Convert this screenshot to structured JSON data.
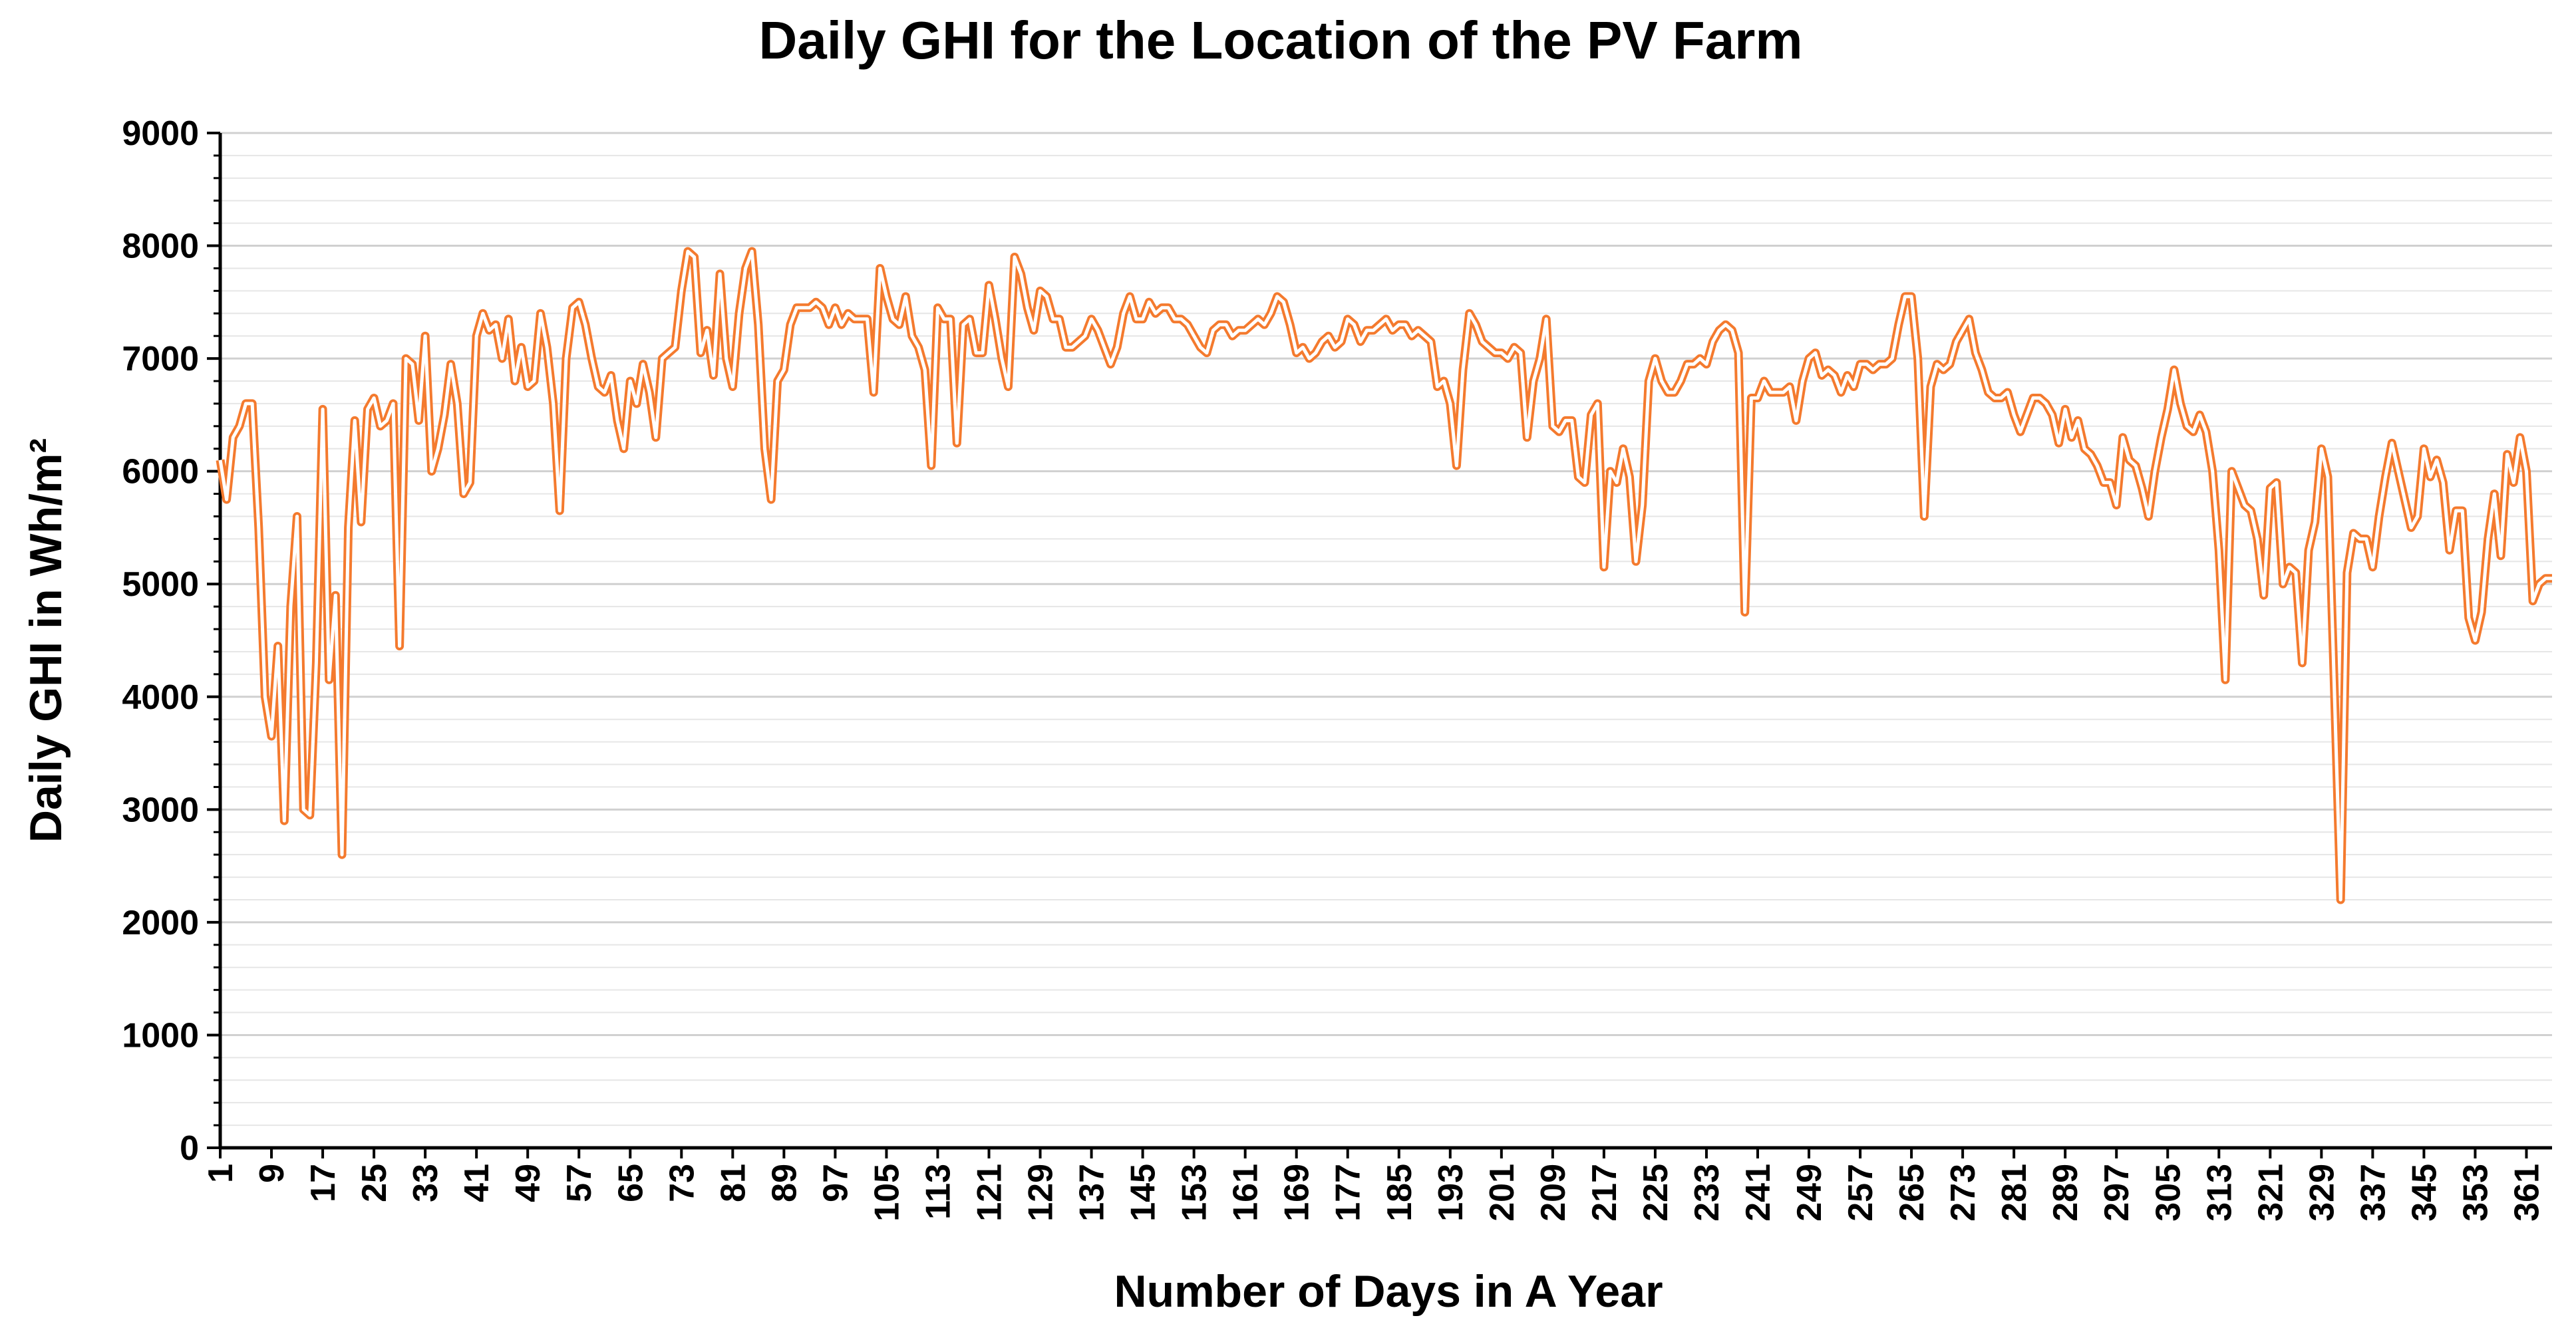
{
  "chart_data": {
    "type": "line",
    "title": "Daily GHI for the Location of the PV Farm",
    "xlabel": "Number of Days in A Year",
    "ylabel": "Daily GHI in Wh/m²",
    "x": [
      1,
      2,
      3,
      4,
      5,
      6,
      7,
      8,
      9,
      10,
      11,
      12,
      13,
      14,
      15,
      16,
      17,
      18,
      19,
      20,
      21,
      22,
      23,
      24,
      25,
      26,
      27,
      28,
      29,
      30,
      31,
      32,
      33,
      34,
      35,
      36,
      37,
      38,
      39,
      40,
      41,
      42,
      43,
      44,
      45,
      46,
      47,
      48,
      49,
      50,
      51,
      52,
      53,
      54,
      55,
      56,
      57,
      58,
      59,
      60,
      61,
      62,
      63,
      64,
      65,
      66,
      67,
      68,
      69,
      70,
      71,
      72,
      73,
      74,
      75,
      76,
      77,
      78,
      79,
      80,
      81,
      82,
      83,
      84,
      85,
      86,
      87,
      88,
      89,
      90,
      91,
      92,
      93,
      94,
      95,
      96,
      97,
      98,
      99,
      100,
      101,
      102,
      103,
      104,
      105,
      106,
      107,
      108,
      109,
      110,
      111,
      112,
      113,
      114,
      115,
      116,
      117,
      118,
      119,
      120,
      121,
      122,
      123,
      124,
      125,
      126,
      127,
      128,
      129,
      130,
      131,
      132,
      133,
      134,
      135,
      136,
      137,
      138,
      139,
      140,
      141,
      142,
      143,
      144,
      145,
      146,
      147,
      148,
      149,
      150,
      151,
      152,
      153,
      154,
      155,
      156,
      157,
      158,
      159,
      160,
      161,
      162,
      163,
      164,
      165,
      166,
      167,
      168,
      169,
      170,
      171,
      172,
      173,
      174,
      175,
      176,
      177,
      178,
      179,
      180,
      181,
      182,
      183,
      184,
      185,
      186,
      187,
      188,
      189,
      190,
      191,
      192,
      193,
      194,
      195,
      196,
      197,
      198,
      199,
      200,
      201,
      202,
      203,
      204,
      205,
      206,
      207,
      208,
      209,
      210,
      211,
      212,
      213,
      214,
      215,
      216,
      217,
      218,
      219,
      220,
      221,
      222,
      223,
      224,
      225,
      226,
      227,
      228,
      229,
      230,
      231,
      232,
      233,
      234,
      235,
      236,
      237,
      238,
      239,
      240,
      241,
      242,
      243,
      244,
      245,
      246,
      247,
      248,
      249,
      250,
      251,
      252,
      253,
      254,
      255,
      256,
      257,
      258,
      259,
      260,
      261,
      262,
      263,
      264,
      265,
      266,
      267,
      268,
      269,
      270,
      271,
      272,
      273,
      274,
      275,
      276,
      277,
      278,
      279,
      280,
      281,
      282,
      283,
      284,
      285,
      286,
      287,
      288,
      289,
      290,
      291,
      292,
      293,
      294,
      295,
      296,
      297,
      298,
      299,
      300,
      301,
      302,
      303,
      304,
      305,
      306,
      307,
      308,
      309,
      310,
      311,
      312,
      313,
      314,
      315,
      316,
      317,
      318,
      319,
      320,
      321,
      322,
      323,
      324,
      325,
      326,
      327,
      328,
      329,
      330,
      331,
      332,
      333,
      334,
      335,
      336,
      337,
      338,
      339,
      340,
      341,
      342,
      343,
      344,
      345,
      346,
      347,
      348,
      349,
      350,
      351,
      352,
      353,
      354,
      355,
      356,
      357,
      358,
      359,
      360,
      361,
      362,
      363,
      364,
      365
    ],
    "series": [
      {
        "name": "Daily GHI",
        "color": "#f47a2e",
        "values": [
          6100,
          5750,
          6300,
          6400,
          6600,
          6600,
          5500,
          4000,
          3650,
          4450,
          2900,
          4800,
          5600,
          3000,
          2950,
          4300,
          6550,
          4150,
          4900,
          2600,
          5500,
          6450,
          5550,
          6550,
          6650,
          6400,
          6450,
          6600,
          4450,
          7000,
          6950,
          6450,
          7200,
          6000,
          6200,
          6500,
          6950,
          6600,
          5800,
          5900,
          7200,
          7400,
          7250,
          7300,
          7000,
          7350,
          6800,
          7100,
          6750,
          6800,
          7400,
          7100,
          6600,
          5650,
          7000,
          7450,
          7500,
          7300,
          7000,
          6750,
          6700,
          6850,
          6450,
          6200,
          6800,
          6600,
          6950,
          6700,
          6300,
          7000,
          7050,
          7100,
          7600,
          7950,
          7900,
          7050,
          7250,
          6850,
          7750,
          7000,
          6750,
          7400,
          7800,
          7950,
          7300,
          6200,
          5750,
          6800,
          6900,
          7300,
          7450,
          7450,
          7450,
          7500,
          7450,
          7300,
          7450,
          7300,
          7400,
          7350,
          7350,
          7350,
          6700,
          7800,
          7550,
          7350,
          7300,
          7550,
          7200,
          7100,
          6900,
          6050,
          7450,
          7350,
          7350,
          6250,
          7300,
          7350,
          7050,
          7050,
          7650,
          7350,
          7000,
          6750,
          7900,
          7750,
          7450,
          7250,
          7600,
          7550,
          7350,
          7350,
          7100,
          7100,
          7150,
          7200,
          7350,
          7250,
          7100,
          6950,
          7100,
          7400,
          7550,
          7350,
          7350,
          7500,
          7400,
          7450,
          7450,
          7350,
          7350,
          7300,
          7200,
          7100,
          7050,
          7250,
          7300,
          7300,
          7200,
          7250,
          7250,
          7300,
          7350,
          7300,
          7400,
          7550,
          7500,
          7300,
          7050,
          7100,
          7000,
          7050,
          7150,
          7200,
          7100,
          7150,
          7350,
          7300,
          7150,
          7250,
          7250,
          7300,
          7350,
          7250,
          7300,
          7300,
          7200,
          7250,
          7200,
          7150,
          6750,
          6800,
          6600,
          6050,
          6900,
          7400,
          7300,
          7150,
          7100,
          7050,
          7050,
          7000,
          7100,
          7050,
          6300,
          6800,
          7000,
          7350,
          6400,
          6350,
          6450,
          6450,
          5950,
          5900,
          6500,
          6600,
          5150,
          6000,
          5900,
          6200,
          5950,
          5200,
          5700,
          6800,
          7000,
          6800,
          6700,
          6700,
          6800,
          6950,
          6950,
          7000,
          6950,
          7150,
          7250,
          7300,
          7250,
          7050,
          4750,
          6650,
          6650,
          6800,
          6700,
          6700,
          6700,
          6750,
          6450,
          6800,
          7000,
          7050,
          6850,
          6900,
          6850,
          6700,
          6850,
          6750,
          6950,
          6950,
          6900,
          6950,
          6950,
          7000,
          7300,
          7550,
          7550,
          7000,
          5600,
          6750,
          6950,
          6900,
          6950,
          7150,
          7250,
          7350,
          7050,
          6900,
          6700,
          6650,
          6650,
          6700,
          6500,
          6350,
          6500,
          6650,
          6650,
          6600,
          6500,
          6250,
          6550,
          6300,
          6450,
          6200,
          6150,
          6050,
          5900,
          5900,
          5700,
          6300,
          6100,
          6050,
          5850,
          5600,
          6000,
          6300,
          6550,
          6900,
          6600,
          6400,
          6350,
          6500,
          6350,
          6000,
          5300,
          4150,
          6000,
          5850,
          5700,
          5650,
          5400,
          4900,
          5850,
          5900,
          5000,
          5150,
          5100,
          4300,
          5300,
          5550,
          6200,
          5950,
          4100,
          2200,
          5100,
          5450,
          5400,
          5400,
          5150,
          5600,
          5950,
          6250,
          6000,
          5750,
          5500,
          5600,
          6200,
          5950,
          6100,
          5900,
          5300,
          5650,
          5650,
          4700,
          4500,
          4750,
          5400,
          5800,
          5250,
          6150,
          5900,
          6300,
          6000,
          4850,
          5000,
          5050,
          5050
        ]
      }
    ],
    "xlim": [
      1,
      365
    ],
    "xticks": [
      1,
      9,
      17,
      25,
      33,
      41,
      49,
      57,
      65,
      73,
      81,
      89,
      97,
      105,
      113,
      121,
      129,
      137,
      145,
      153,
      161,
      169,
      177,
      185,
      193,
      201,
      209,
      217,
      225,
      233,
      241,
      249,
      257,
      265,
      273,
      281,
      289,
      297,
      305,
      313,
      321,
      329,
      337,
      345,
      353,
      361
    ],
    "ylim": [
      0,
      9000
    ],
    "yticks": [
      0,
      1000,
      2000,
      3000,
      4000,
      5000,
      6000,
      7000,
      8000,
      9000
    ],
    "grid": true,
    "minor_grid": true
  }
}
